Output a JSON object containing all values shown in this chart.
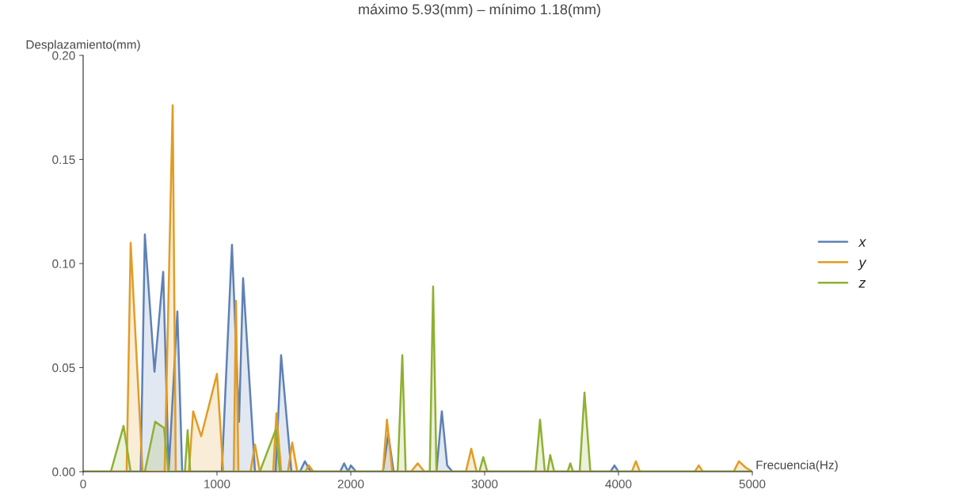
{
  "chart_data": {
    "type": "area",
    "title": "máximo 5.93(mm) – mínimo 1.18(mm)",
    "xlabel": "Frecuencia(Hz)",
    "ylabel": "Desplazamiento(mm)",
    "xlim": [
      0,
      5000
    ],
    "ylim": [
      0,
      0.2
    ],
    "xticks": [
      0,
      1000,
      2000,
      3000,
      4000,
      5000
    ],
    "yticks": [
      {
        "value": 0,
        "label": "0.00"
      },
      {
        "value": 0.05,
        "label": "0.05"
      },
      {
        "value": 0.1,
        "label": "0.10"
      },
      {
        "value": 0.15,
        "label": "0.15"
      },
      {
        "value": 0.2,
        "label": "0.20"
      }
    ],
    "legend": "right",
    "grid": false,
    "series": [
      {
        "name": "x",
        "color": "#5e81b5",
        "x": [
          0,
          430,
          461,
          533,
          598,
          639,
          704,
          740,
          1036,
          1112,
          1165,
          1195,
          1284,
          1438,
          1479,
          1556,
          1620,
          1657,
          1700,
          1920,
          1950,
          1980,
          2000,
          2040,
          2240,
          2280,
          2320,
          2640,
          2680,
          2720,
          2760,
          3940,
          3970,
          4000,
          5000
        ],
        "values": [
          0,
          0,
          0.114,
          0.048,
          0.096,
          0,
          0.077,
          0,
          0,
          0.109,
          0.024,
          0.093,
          0,
          0,
          0.056,
          0,
          0,
          0.005,
          0,
          0,
          0.004,
          0,
          0.003,
          0,
          0,
          0.018,
          0,
          0,
          0.029,
          0.003,
          0,
          0,
          0.003,
          0,
          0
        ]
      },
      {
        "name": "y",
        "color": "#e19c24",
        "x": [
          0,
          325,
          355,
          444,
          609,
          669,
          692,
          790,
          822,
          882,
          1000,
          1047,
          1125,
          1142,
          1160,
          1250,
          1284,
          1320,
          1420,
          1444,
          1480,
          1530,
          1562,
          1600,
          1660,
          1686,
          1720,
          2240,
          2270,
          2310,
          2450,
          2500,
          2550,
          2860,
          2900,
          2940,
          4100,
          4130,
          4160,
          4570,
          4600,
          4630,
          4860,
          4900,
          4950,
          5000
        ],
        "values": [
          0,
          0,
          0.11,
          0,
          0,
          0.176,
          0,
          0,
          0.029,
          0.017,
          0.047,
          0,
          0,
          0.082,
          0,
          0,
          0.013,
          0,
          0,
          0.028,
          0,
          0,
          0.014,
          0,
          0,
          0.003,
          0,
          0,
          0.025,
          0,
          0,
          0.004,
          0,
          0,
          0.011,
          0,
          0,
          0.005,
          0,
          0,
          0.003,
          0,
          0,
          0.005,
          0.002,
          0
        ]
      },
      {
        "name": "z",
        "color": "#8fb032",
        "x": [
          0,
          207,
          302,
          355,
          461,
          538,
          604,
          639,
          760,
          781,
          800,
          1320,
          1438,
          1470,
          2350,
          2385,
          2410,
          2590,
          2615,
          2640,
          2960,
          2990,
          3020,
          3380,
          3414,
          3450,
          3470,
          3490,
          3520,
          3620,
          3640,
          3660,
          3710,
          3746,
          3790,
          5000
        ],
        "values": [
          0,
          0,
          0.022,
          0,
          0,
          0.024,
          0.021,
          0,
          0,
          0.02,
          0,
          0,
          0.02,
          0,
          0,
          0.056,
          0,
          0,
          0.089,
          0,
          0,
          0.007,
          0,
          0,
          0.025,
          0,
          0,
          0.008,
          0,
          0,
          0.004,
          0,
          0,
          0.038,
          0,
          0
        ]
      }
    ]
  }
}
